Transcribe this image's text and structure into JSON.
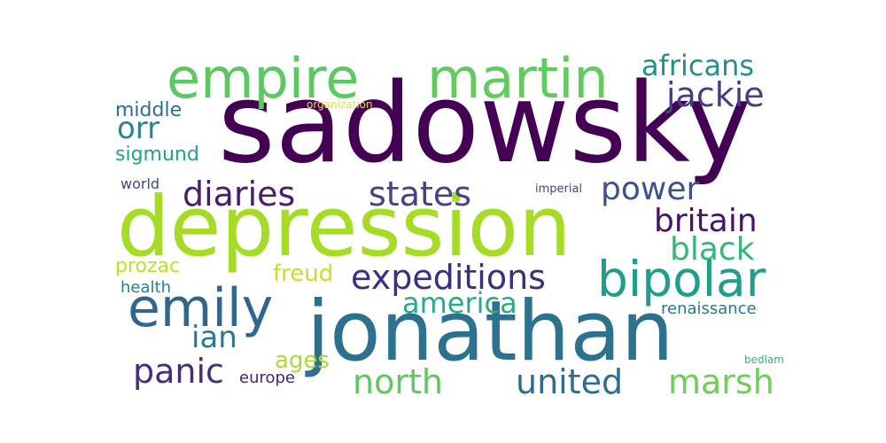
{
  "words": [
    {
      "text": "sadowsky",
      "color": "#440154"
    },
    {
      "text": "depression",
      "color": "#a6db26"
    },
    {
      "text": "jonathan",
      "color": "#2c728e"
    },
    {
      "text": "empire",
      "color": "#5cc863"
    },
    {
      "text": "martin",
      "color": "#62cb5f"
    },
    {
      "text": "emily",
      "color": "#31678e"
    },
    {
      "text": "bipolar",
      "color": "#1f9e89"
    },
    {
      "text": "expeditions",
      "color": "#3b2f80"
    },
    {
      "text": "united",
      "color": "#2d6e8e"
    },
    {
      "text": "north",
      "color": "#5ec962"
    },
    {
      "text": "marsh",
      "color": "#6ece58"
    },
    {
      "text": "jackie",
      "color": "#433e85"
    },
    {
      "text": "africans",
      "color": "#21918c"
    },
    {
      "text": "diaries",
      "color": "#481d6f"
    },
    {
      "text": "states",
      "color": "#414487"
    },
    {
      "text": "power",
      "color": "#3b528b"
    },
    {
      "text": "britain",
      "color": "#471365"
    },
    {
      "text": "black",
      "color": "#35b779"
    },
    {
      "text": "america",
      "color": "#27ad81"
    },
    {
      "text": "panic",
      "color": "#472d7b"
    },
    {
      "text": "ian",
      "color": "#2a788e"
    },
    {
      "text": "orr",
      "color": "#25858e"
    },
    {
      "text": "middle",
      "color": "#2e6f8e"
    },
    {
      "text": "sigmund",
      "color": "#20a386"
    },
    {
      "text": "world",
      "color": "#3e4a89"
    },
    {
      "text": "prozac",
      "color": "#c2df23"
    },
    {
      "text": "health",
      "color": "#26828e"
    },
    {
      "text": "freud",
      "color": "#c8e020"
    },
    {
      "text": "ages",
      "color": "#addc30"
    },
    {
      "text": "europe",
      "color": "#482576"
    },
    {
      "text": "renaissance",
      "color": "#2a788e"
    },
    {
      "text": "imperial",
      "color": "#404688"
    },
    {
      "text": "organization",
      "color": "#e5e419"
    },
    {
      "text": "bedlam",
      "color": "#2fb47c"
    }
  ]
}
